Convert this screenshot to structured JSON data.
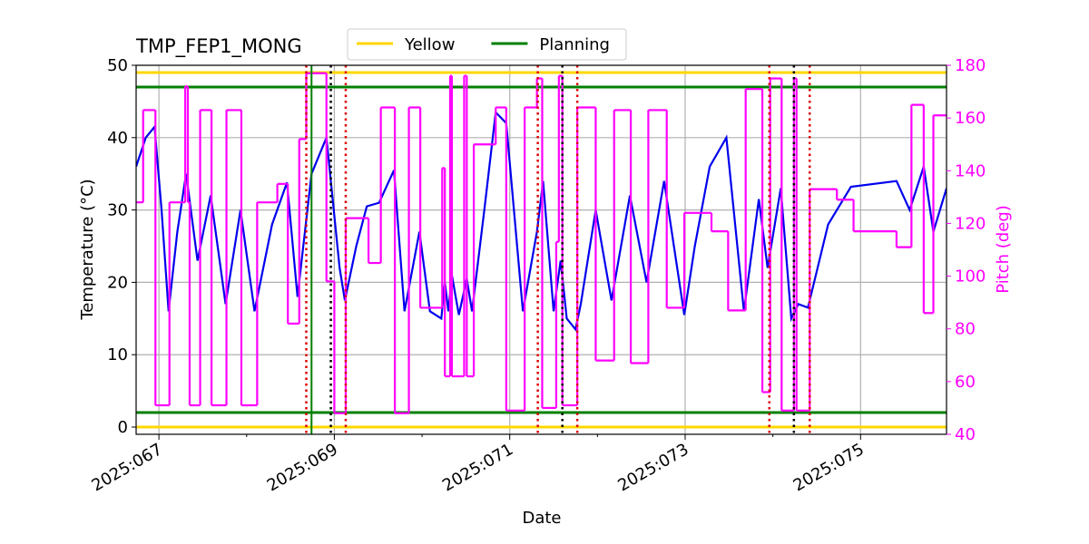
{
  "chart_data": {
    "type": "line",
    "title": "TMP_FEP1_MONG",
    "x_label": "Date",
    "y_label": "Temperature (°C)",
    "y2_label": "Pitch (deg)",
    "xlim": [
      66.74,
      75.98
    ],
    "ylim": [
      -1,
      50
    ],
    "y2lim": [
      40,
      180
    ],
    "xticks": [
      {
        "value": 67,
        "label": "2025:067"
      },
      {
        "value": 69,
        "label": "2025:069"
      },
      {
        "value": 71,
        "label": "2025:071"
      },
      {
        "value": 73,
        "label": "2025:073"
      },
      {
        "value": 75,
        "label": "2025:075"
      }
    ],
    "xticks_minor": [
      68,
      70,
      72,
      74
    ],
    "yticks": [
      0,
      10,
      20,
      30,
      40,
      50
    ],
    "y2ticks": [
      40,
      60,
      80,
      100,
      120,
      140,
      160,
      180
    ],
    "grid": true,
    "y2_color": "#ff00ff",
    "temperature": {
      "color": "#0000ee",
      "x": [
        66.74,
        66.85,
        66.95,
        67.03,
        67.11,
        67.21,
        67.31,
        67.44,
        67.59,
        67.76,
        67.93,
        68.09,
        68.29,
        68.46,
        68.58,
        68.74,
        68.91,
        69.06,
        69.12,
        69.25,
        69.37,
        69.51,
        69.68,
        69.8,
        69.97,
        70.09,
        70.22,
        70.26,
        70.3,
        70.34,
        70.42,
        70.51,
        70.57,
        70.71,
        70.84,
        70.96,
        71.15,
        71.31,
        71.38,
        71.5,
        71.58,
        71.65,
        71.75,
        71.81,
        71.98,
        72.16,
        72.37,
        72.56,
        72.76,
        72.99,
        73.11,
        73.28,
        73.47,
        73.67,
        73.84,
        73.94,
        74.09,
        74.21,
        74.29,
        74.4,
        74.63,
        74.89,
        75.41,
        75.56,
        75.72,
        75.83,
        75.98
      ],
      "values": [
        36,
        40,
        41.5,
        30,
        16,
        27,
        35,
        23,
        32,
        17,
        30,
        16,
        28,
        33.8,
        18,
        35,
        40,
        22,
        17.5,
        25,
        30.5,
        31,
        35.5,
        16,
        27,
        16,
        15,
        20,
        16,
        21,
        15.5,
        20.5,
        16,
        30,
        43.5,
        42,
        16,
        27,
        34,
        16,
        23,
        15,
        13.5,
        17,
        30,
        17.5,
        32,
        20,
        34,
        15.5,
        25,
        36,
        40,
        16,
        31.5,
        22,
        33,
        15,
        17,
        16.5,
        28,
        33.2,
        34,
        30,
        36,
        27,
        33
      ]
    },
    "pitch": {
      "color": "#ff00ff",
      "axis": "y2",
      "drawstyle": "steps-post",
      "x": [
        66.74,
        66.82,
        66.96,
        67.12,
        67.3,
        67.33,
        67.35,
        67.47,
        67.6,
        67.77,
        67.94,
        68.12,
        68.35,
        68.47,
        68.6,
        68.68,
        68.91,
        69.0,
        69.13,
        69.39,
        69.53,
        69.69,
        69.85,
        69.98,
        70.23,
        70.26,
        70.32,
        70.34,
        70.48,
        70.51,
        70.59,
        70.84,
        70.96,
        71.17,
        71.31,
        71.37,
        71.53,
        71.56,
        71.6,
        71.77,
        71.98,
        72.19,
        72.38,
        72.58,
        72.79,
        72.99,
        73.3,
        73.49,
        73.69,
        73.88,
        73.97,
        74.1,
        74.24,
        74.27,
        74.42,
        74.73,
        74.92,
        75.41,
        75.58,
        75.72,
        75.83
      ],
      "values": [
        128,
        163,
        51,
        128,
        172,
        128,
        51,
        163,
        51,
        163,
        51,
        128,
        135,
        82,
        152,
        177,
        98,
        48,
        122,
        105,
        164,
        48,
        164,
        88,
        141,
        62,
        176,
        62,
        176,
        62,
        150,
        164,
        49,
        164,
        175,
        50,
        113,
        176,
        51,
        164,
        68,
        163,
        67,
        163,
        88,
        124,
        117,
        87,
        171,
        56,
        175,
        49,
        175,
        49,
        133,
        129,
        117,
        111,
        165,
        86,
        161
      ]
    },
    "hlines": [
      {
        "name": "Yellow",
        "color": "#ffd700",
        "values": [
          0,
          49
        ]
      },
      {
        "name": "Planning",
        "color": "#008000",
        "values": [
          2,
          47
        ]
      }
    ],
    "vlines": [
      {
        "color": "#dd0000",
        "dash": "dotted",
        "x": [
          68.68,
          69.13,
          71.32,
          71.77,
          73.96,
          74.42
        ]
      },
      {
        "color": "#000000",
        "dash": "dotted",
        "x": [
          68.96,
          71.6,
          74.24
        ]
      },
      {
        "color": "#008000",
        "dash": "solid",
        "x": [
          68.74
        ]
      }
    ],
    "legend_loc": "upper center"
  }
}
